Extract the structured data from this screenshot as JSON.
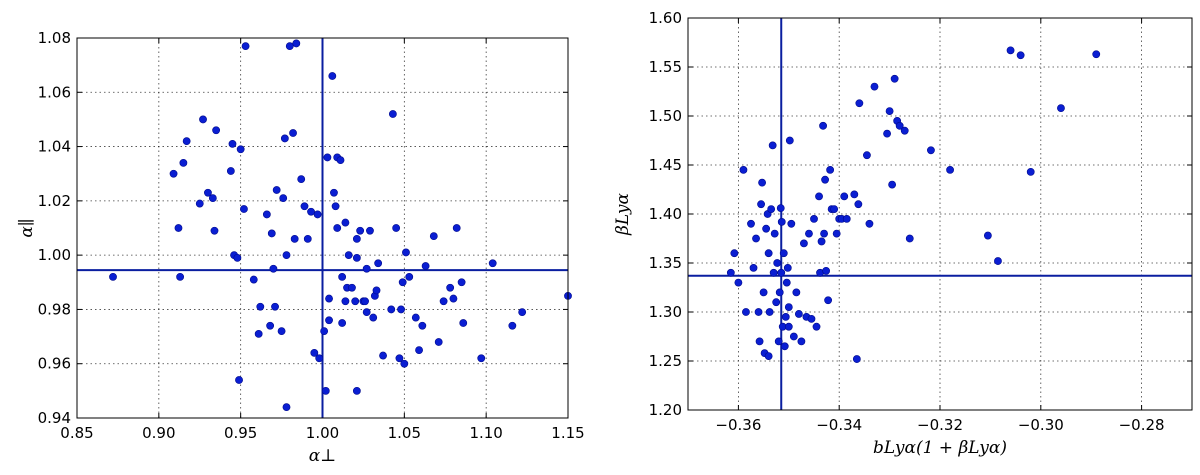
{
  "chart_data": [
    {
      "type": "scatter",
      "xlabel": "α⊥",
      "ylabel": "α∥",
      "xlim": [
        0.85,
        1.15
      ],
      "ylim": [
        0.94,
        1.08
      ],
      "xticks": [
        "0.85",
        "0.90",
        "0.95",
        "1.00",
        "1.05",
        "1.10",
        "1.15"
      ],
      "yticks": [
        "0.94",
        "0.96",
        "0.98",
        "1.00",
        "1.02",
        "1.04",
        "1.06",
        "1.08"
      ],
      "grid": true,
      "color": "#0a1ed2",
      "reference_lines": {
        "x": 1.0,
        "y": 0.9945
      },
      "points": [
        [
          0.872,
          0.992
        ],
        [
          0.909,
          1.03
        ],
        [
          0.912,
          1.01
        ],
        [
          0.913,
          0.992
        ],
        [
          0.915,
          1.034
        ],
        [
          0.917,
          1.042
        ],
        [
          0.925,
          1.019
        ],
        [
          0.927,
          1.05
        ],
        [
          0.93,
          1.023
        ],
        [
          0.933,
          1.021
        ],
        [
          0.934,
          1.009
        ],
        [
          0.935,
          1.046
        ],
        [
          0.944,
          1.031
        ],
        [
          0.945,
          1.041
        ],
        [
          0.946,
          1.0
        ],
        [
          0.948,
          0.999
        ],
        [
          0.949,
          0.954
        ],
        [
          0.95,
          1.039
        ],
        [
          0.952,
          1.017
        ],
        [
          0.953,
          1.077
        ],
        [
          0.961,
          0.971
        ],
        [
          0.962,
          0.981
        ],
        [
          0.966,
          1.015
        ],
        [
          0.968,
          0.974
        ],
        [
          0.969,
          1.008
        ],
        [
          0.97,
          0.995
        ],
        [
          0.971,
          0.981
        ],
        [
          0.972,
          1.024
        ],
        [
          0.975,
          0.972
        ],
        [
          0.976,
          1.021
        ],
        [
          0.977,
          1.043
        ],
        [
          0.978,
          0.944
        ],
        [
          0.98,
          1.077
        ],
        [
          0.982,
          1.045
        ],
        [
          0.983,
          1.006
        ],
        [
          0.984,
          1.078
        ],
        [
          0.987,
          1.028
        ],
        [
          0.989,
          1.018
        ],
        [
          0.991,
          1.006
        ],
        [
          0.993,
          1.016
        ],
        [
          0.995,
          0.964
        ],
        [
          0.997,
          1.015
        ],
        [
          0.998,
          0.962
        ],
        [
          1.001,
          0.972
        ],
        [
          1.002,
          0.95
        ],
        [
          1.003,
          1.036
        ],
        [
          1.004,
          0.984
        ],
        [
          1.004,
          0.976
        ],
        [
          1.006,
          1.066
        ],
        [
          1.007,
          1.023
        ],
        [
          1.008,
          1.018
        ],
        [
          1.009,
          1.01
        ],
        [
          1.009,
          1.036
        ],
        [
          1.011,
          1.035
        ],
        [
          1.012,
          0.992
        ],
        [
          1.012,
          0.975
        ],
        [
          1.014,
          0.983
        ],
        [
          1.015,
          0.988
        ],
        [
          1.016,
          1.0
        ],
        [
          1.018,
          0.988
        ],
        [
          1.02,
          0.983
        ],
        [
          1.021,
          0.95
        ],
        [
          1.021,
          0.999
        ],
        [
          1.021,
          1.006
        ],
        [
          1.023,
          1.009
        ],
        [
          1.025,
          0.983
        ],
        [
          1.026,
          0.983
        ],
        [
          1.027,
          0.979
        ],
        [
          1.027,
          0.995
        ],
        [
          1.029,
          1.009
        ],
        [
          1.031,
          0.977
        ],
        [
          1.032,
          0.985
        ],
        [
          1.033,
          0.987
        ],
        [
          1.037,
          0.963
        ],
        [
          1.042,
          0.98
        ],
        [
          1.043,
          1.052
        ],
        [
          1.045,
          1.01
        ],
        [
          1.047,
          0.962
        ],
        [
          1.048,
          0.98
        ],
        [
          1.049,
          0.99
        ],
        [
          1.05,
          0.96
        ],
        [
          1.051,
          1.001
        ],
        [
          1.053,
          0.992
        ],
        [
          1.057,
          0.977
        ],
        [
          1.059,
          0.965
        ],
        [
          1.061,
          0.974
        ],
        [
          1.063,
          0.996
        ],
        [
          1.068,
          1.007
        ],
        [
          1.071,
          0.968
        ],
        [
          1.074,
          0.983
        ],
        [
          1.078,
          0.988
        ],
        [
          1.08,
          0.984
        ],
        [
          1.082,
          1.01
        ],
        [
          1.085,
          0.99
        ],
        [
          1.086,
          0.975
        ],
        [
          1.097,
          0.962
        ],
        [
          1.104,
          0.997
        ],
        [
          1.116,
          0.974
        ],
        [
          1.122,
          0.979
        ],
        [
          1.15,
          0.985
        ],
        [
          1.034,
          0.997
        ],
        [
          0.978,
          1.0
        ],
        [
          1.014,
          1.012
        ],
        [
          0.958,
          0.991
        ]
      ]
    },
    {
      "type": "scatter",
      "xlabel": "bLyα(1 + βLyα)",
      "ylabel": "βLyα",
      "xlim": [
        -0.37,
        -0.27
      ],
      "ylim": [
        1.2,
        1.6
      ],
      "xticks": [
        "−0.36",
        "−0.34",
        "−0.32",
        "−0.30",
        "−0.28"
      ],
      "yticks": [
        "1.20",
        "1.25",
        "1.30",
        "1.35",
        "1.40",
        "1.45",
        "1.50",
        "1.55",
        "1.60"
      ],
      "grid": true,
      "color": "#0a1ed2",
      "reference_lines": {
        "x": -0.3515,
        "y": 1.337
      },
      "points": [
        [
          -0.3615,
          1.34
        ],
        [
          -0.3608,
          1.36
        ],
        [
          -0.36,
          1.33
        ],
        [
          -0.359,
          1.445
        ],
        [
          -0.3585,
          1.3
        ],
        [
          -0.3575,
          1.39
        ],
        [
          -0.357,
          1.345
        ],
        [
          -0.3565,
          1.375
        ],
        [
          -0.356,
          1.3
        ],
        [
          -0.3558,
          1.27
        ],
        [
          -0.3555,
          1.41
        ],
        [
          -0.3553,
          1.432
        ],
        [
          -0.355,
          1.32
        ],
        [
          -0.3548,
          1.258
        ],
        [
          -0.3545,
          1.385
        ],
        [
          -0.3542,
          1.4
        ],
        [
          -0.354,
          1.36
        ],
        [
          -0.3538,
          1.3
        ],
        [
          -0.3535,
          1.405
        ],
        [
          -0.3532,
          1.47
        ],
        [
          -0.353,
          1.34
        ],
        [
          -0.3528,
          1.38
        ],
        [
          -0.3525,
          1.31
        ],
        [
          -0.3523,
          1.35
        ],
        [
          -0.352,
          1.27
        ],
        [
          -0.3518,
          1.32
        ],
        [
          -0.3516,
          1.406
        ],
        [
          -0.3515,
          1.34
        ],
        [
          -0.3514,
          1.392
        ],
        [
          -0.3512,
          1.285
        ],
        [
          -0.351,
          1.36
        ],
        [
          -0.3508,
          1.265
        ],
        [
          -0.3506,
          1.295
        ],
        [
          -0.3504,
          1.33
        ],
        [
          -0.3502,
          1.345
        ],
        [
          -0.35,
          1.305
        ],
        [
          -0.3498,
          1.475
        ],
        [
          -0.3495,
          1.39
        ],
        [
          -0.349,
          1.275
        ],
        [
          -0.3485,
          1.32
        ],
        [
          -0.348,
          1.298
        ],
        [
          -0.3475,
          1.27
        ],
        [
          -0.347,
          1.37
        ],
        [
          -0.3465,
          1.295
        ],
        [
          -0.346,
          1.38
        ],
        [
          -0.3455,
          1.293
        ],
        [
          -0.345,
          1.395
        ],
        [
          -0.3445,
          1.285
        ],
        [
          -0.344,
          1.418
        ],
        [
          -0.3438,
          1.34
        ],
        [
          -0.3435,
          1.372
        ],
        [
          -0.3432,
          1.49
        ],
        [
          -0.343,
          1.38
        ],
        [
          -0.3428,
          1.435
        ],
        [
          -0.3426,
          1.342
        ],
        [
          -0.3422,
          1.312
        ],
        [
          -0.3418,
          1.445
        ],
        [
          -0.3415,
          1.405
        ],
        [
          -0.341,
          1.405
        ],
        [
          -0.3405,
          1.38
        ],
        [
          -0.34,
          1.395
        ],
        [
          -0.3395,
          1.395
        ],
        [
          -0.339,
          1.418
        ],
        [
          -0.3385,
          1.395
        ],
        [
          -0.337,
          1.42
        ],
        [
          -0.3365,
          1.252
        ],
        [
          -0.3362,
          1.41
        ],
        [
          -0.336,
          1.513
        ],
        [
          -0.3345,
          1.46
        ],
        [
          -0.334,
          1.39
        ],
        [
          -0.333,
          1.53
        ],
        [
          -0.3305,
          1.482
        ],
        [
          -0.33,
          1.505
        ],
        [
          -0.3295,
          1.43
        ],
        [
          -0.329,
          1.538
        ],
        [
          -0.3285,
          1.495
        ],
        [
          -0.328,
          1.49
        ],
        [
          -0.327,
          1.485
        ],
        [
          -0.326,
          1.375
        ],
        [
          -0.3218,
          1.465
        ],
        [
          -0.318,
          1.445
        ],
        [
          -0.3105,
          1.378
        ],
        [
          -0.3085,
          1.352
        ],
        [
          -0.306,
          1.567
        ],
        [
          -0.304,
          1.562
        ],
        [
          -0.302,
          1.443
        ],
        [
          -0.296,
          1.508
        ],
        [
          -0.289,
          1.563
        ],
        [
          -0.354,
          1.255
        ],
        [
          -0.35,
          1.285
        ]
      ]
    }
  ]
}
